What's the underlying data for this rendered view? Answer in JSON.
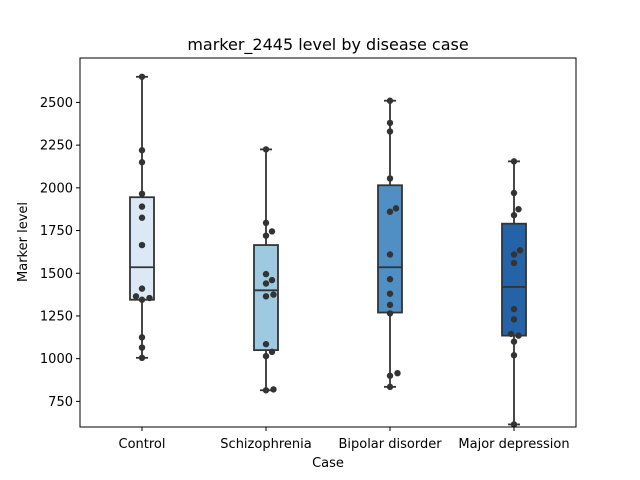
{
  "chart_data": {
    "type": "box",
    "title": "marker_2445 level by disease case",
    "xlabel": "Case",
    "ylabel": "Marker level",
    "ylim": [
      600,
      2760
    ],
    "yticks": [
      750,
      1000,
      1250,
      1500,
      1750,
      2000,
      2250,
      2500
    ],
    "categories": [
      "Control",
      "Schizophrenia",
      "Bipolar disorder",
      "Major depression"
    ],
    "box_colors": [
      "#dbe9f6",
      "#9ecae1",
      "#4f8fc3",
      "#2563a8"
    ],
    "boxes": [
      {
        "q1": 1345,
        "median": 1535,
        "q3": 1945,
        "whisker_low": 1005,
        "whisker_high": 2650
      },
      {
        "q1": 1050,
        "median": 1400,
        "q3": 1665,
        "whisker_low": 815,
        "whisker_high": 2225
      },
      {
        "q1": 1270,
        "median": 1535,
        "q3": 2015,
        "whisker_low": 835,
        "whisker_high": 2510
      },
      {
        "q1": 1135,
        "median": 1420,
        "q3": 1790,
        "whisker_low": 615,
        "whisker_high": 2155
      }
    ],
    "points": [
      [
        1005,
        1065,
        1125,
        1345,
        1355,
        1365,
        1410,
        1665,
        1825,
        1890,
        1965,
        2150,
        2220,
        2650
      ],
      [
        815,
        820,
        1015,
        1040,
        1085,
        1365,
        1375,
        1440,
        1460,
        1495,
        1720,
        1745,
        1795,
        2225
      ],
      [
        835,
        900,
        915,
        1265,
        1315,
        1380,
        1465,
        1610,
        1860,
        1880,
        2055,
        2330,
        2380,
        2510
      ],
      [
        615,
        1020,
        1100,
        1135,
        1145,
        1230,
        1290,
        1560,
        1610,
        1635,
        1840,
        1875,
        1970,
        2155
      ]
    ]
  }
}
